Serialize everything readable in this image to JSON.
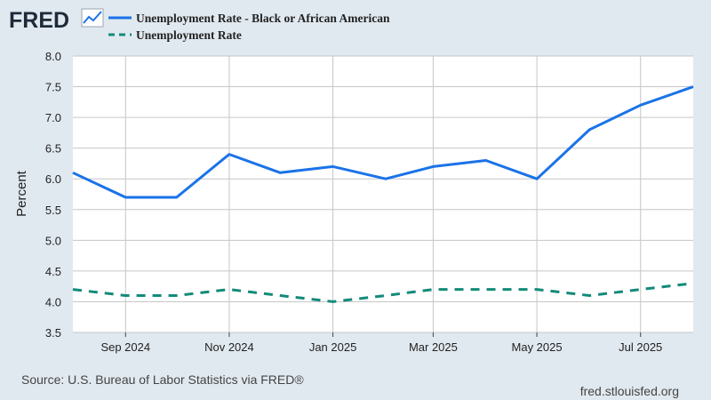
{
  "header": {
    "logo_text": "FRED",
    "logo_icon": "trend-line-icon"
  },
  "legend": [
    {
      "label": "Unemployment Rate - Black or African American",
      "style": "solid",
      "color": "#1a73e8"
    },
    {
      "label": "Unemployment Rate",
      "style": "dashed",
      "color": "#138a7a"
    }
  ],
  "footer": {
    "source": "Source: U.S. Bureau of Labor Statistics via FRED®",
    "site": "fred.stlouisfed.org"
  },
  "colors": {
    "background": "#e1e9f0",
    "plot_background": "#ffffff",
    "grid": "#c6c6c6",
    "logo": "#1e2a3a"
  },
  "chart_data": {
    "type": "line",
    "title": "",
    "xlabel": "",
    "ylabel": "Percent",
    "ylim": [
      3.5,
      8.0
    ],
    "yticks": [
      3.5,
      4.0,
      4.5,
      5.0,
      5.5,
      6.0,
      6.5,
      7.0,
      7.5,
      8.0
    ],
    "ytick_labels": [
      "3.5",
      "4.0",
      "4.5",
      "5.0",
      "5.5",
      "6.0",
      "6.5",
      "7.0",
      "7.5",
      "8.0"
    ],
    "grid": true,
    "x": [
      "2024-08",
      "2024-09",
      "2024-10",
      "2024-11",
      "2024-12",
      "2025-01",
      "2025-02",
      "2025-03",
      "2025-04",
      "2025-05",
      "2025-06",
      "2025-07",
      "2025-08"
    ],
    "xticks": [
      "2024-09",
      "2024-11",
      "2025-01",
      "2025-03",
      "2025-05",
      "2025-07"
    ],
    "xtick_labels": [
      "Sep 2024",
      "Nov 2024",
      "Jan 2025",
      "Mar 2025",
      "May 2025",
      "Jul 2025"
    ],
    "series": [
      {
        "name": "Unemployment Rate - Black or African American",
        "values": [
          6.1,
          5.7,
          5.7,
          6.4,
          6.1,
          6.2,
          6.0,
          6.2,
          6.3,
          6.0,
          6.8,
          7.2,
          7.5
        ],
        "color": "#1a73e8",
        "style": "solid"
      },
      {
        "name": "Unemployment Rate",
        "values": [
          4.2,
          4.1,
          4.1,
          4.2,
          4.1,
          4.0,
          4.1,
          4.2,
          4.2,
          4.2,
          4.1,
          4.2,
          4.3
        ],
        "color": "#138a7a",
        "style": "dashed"
      }
    ]
  }
}
